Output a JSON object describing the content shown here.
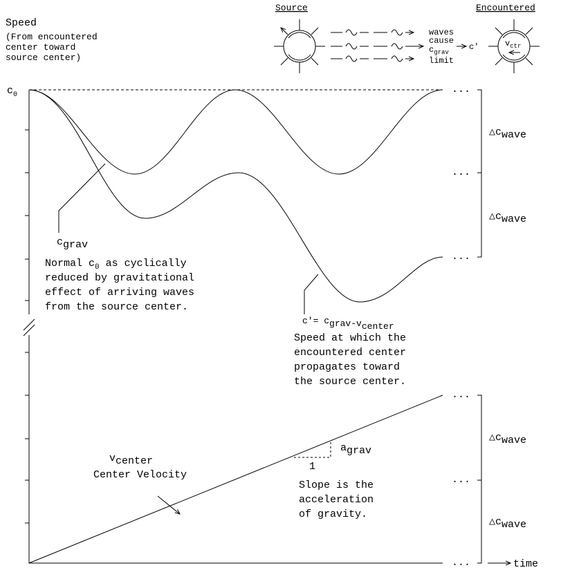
{
  "axis": {
    "title": "Speed",
    "subtitle": [
      "(From encountered",
      "center toward",
      "source center)"
    ],
    "origin": {
      "symbol": "c",
      "sub": "0"
    },
    "time": "time",
    "ellipsis": "...",
    "delta": {
      "symbol": "△c",
      "sub": "wave"
    }
  },
  "legend": {
    "source": "Source",
    "encountered": "Encountered",
    "note": [
      "waves",
      "cause",
      "c",
      "grav",
      "limit"
    ],
    "c_prime": "c'",
    "v": "v",
    "ctr": "ctr"
  },
  "grav_curve": {
    "symbol": "c",
    "sub": "grav",
    "description": [
      [
        "Normal c",
        "0",
        " as cyclically"
      ],
      "reduced by gravitational",
      "effect of arriving waves",
      "from the source center."
    ]
  },
  "propagation_curve": {
    "label": [
      "c'= c",
      "grav",
      "-v",
      "center"
    ],
    "description": [
      "Speed at which the",
      "encountered center",
      "propagates toward",
      "the source center."
    ]
  },
  "velocity_line": {
    "symbol": "v",
    "sub": "center",
    "name": "Center Velocity",
    "slope": {
      "symbol": "a",
      "sub": "grav",
      "run": "1"
    },
    "description": [
      "Slope is the",
      "acceleration",
      "of gravity."
    ]
  }
}
